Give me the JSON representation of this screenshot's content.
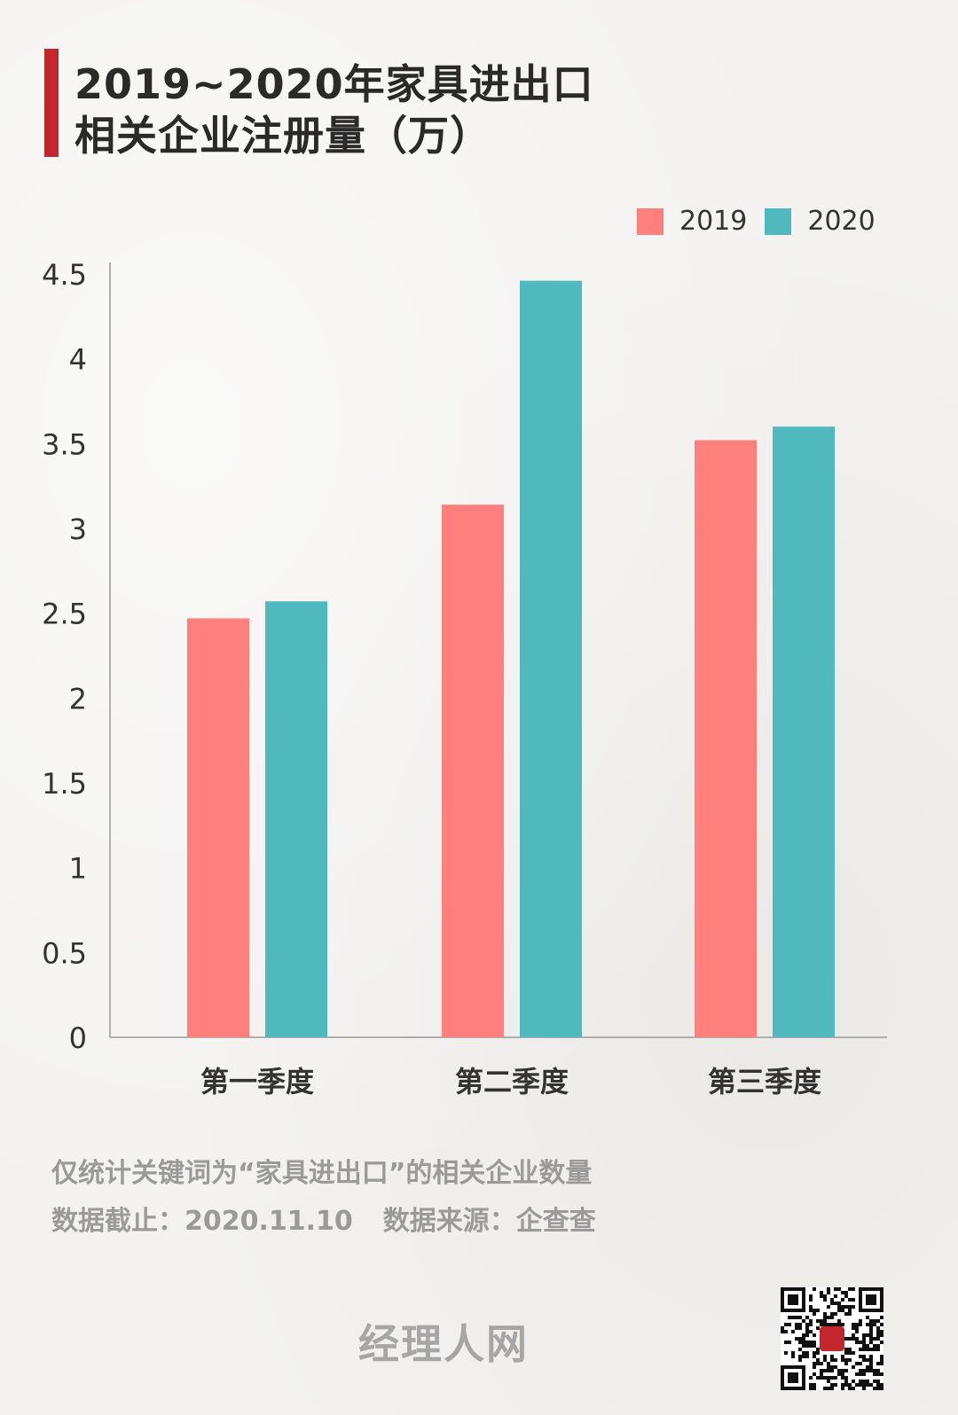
{
  "header": {
    "title_line1": "2019~2020年家具进出口",
    "title_line2": "相关企业注册量（万）"
  },
  "chart_data": {
    "type": "bar",
    "categories": [
      "第一季度",
      "第二季度",
      "第三季度"
    ],
    "series": [
      {
        "name": "2019",
        "values": [
          2.47,
          3.14,
          3.52
        ],
        "color": "#ff7f7c"
      },
      {
        "name": "2020",
        "values": [
          2.57,
          4.46,
          3.6
        ],
        "color": "#4fb9bd"
      }
    ],
    "yticks": [
      "0",
      "0.5",
      "1",
      "1.5",
      "2",
      "2.5",
      "3",
      "3.5",
      "4",
      "4.5"
    ],
    "ylim": [
      0,
      4.5
    ],
    "legend_position": "top-right",
    "grid": false
  },
  "footer": {
    "note": "仅统计关键词为“家具进出口”的相关企业数量",
    "date_label": "数据截止：2020.11.10",
    "source_label": "数据来源：企查查",
    "brand": "经理人网"
  },
  "colors": {
    "accent": "#c1272d"
  },
  "icons": {
    "qr": "qr-code-icon",
    "qr_logo_text": "经理人网"
  }
}
